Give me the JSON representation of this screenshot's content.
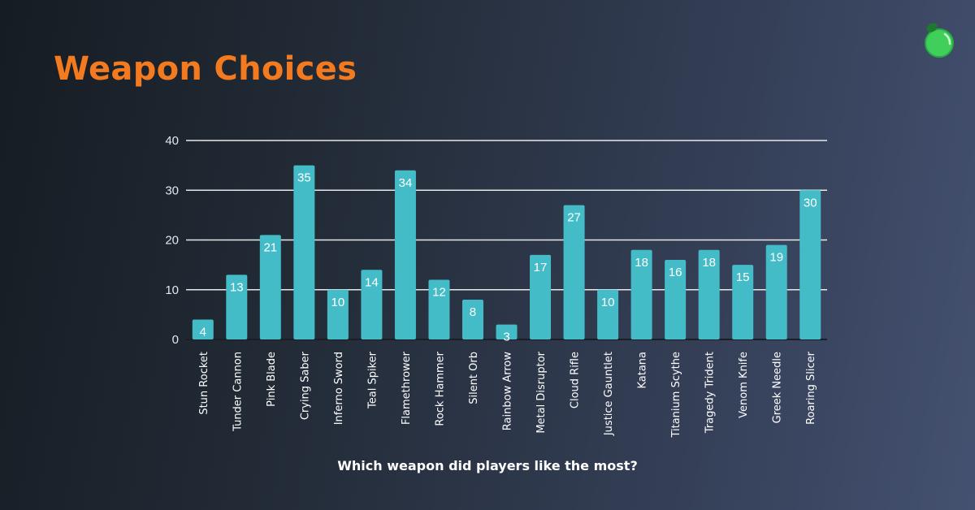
{
  "title": "Weapon Choices",
  "caption": "Which weapon did players like the most?",
  "logo_icon": "green-potion-flask-icon",
  "colors": {
    "title": "#f47a1f",
    "bar": "#44bcc8",
    "grid": "#e8e8e8",
    "logo": "#3fcf5a"
  },
  "chart_data": {
    "type": "bar",
    "title": "",
    "xlabel": "Which weapon did players like the most?",
    "ylabel": "",
    "ylim": [
      0,
      40
    ],
    "yticks": [
      0,
      10,
      20,
      30,
      40
    ],
    "grid": true,
    "data_labels": true,
    "categories": [
      "Stun Rocket",
      "Tunder Cannon",
      "Pink Blade",
      "Crying Saber",
      "Inferno Sword",
      "Teal Spiker",
      "Flamethrower",
      "Rock Hammer",
      "Silent Orb",
      "Rainbow Arrow",
      "Metal Disruptor",
      "Cloud Rifle",
      "Justice Gauntlet",
      "Katana",
      "Titanium Scythe",
      "Tragedy Trident",
      "Venom Knife",
      "Greek Needle",
      "Roaring Slicer"
    ],
    "values": [
      4,
      13,
      21,
      35,
      10,
      14,
      34,
      12,
      8,
      3,
      17,
      27,
      10,
      18,
      16,
      18,
      15,
      19,
      30
    ]
  }
}
